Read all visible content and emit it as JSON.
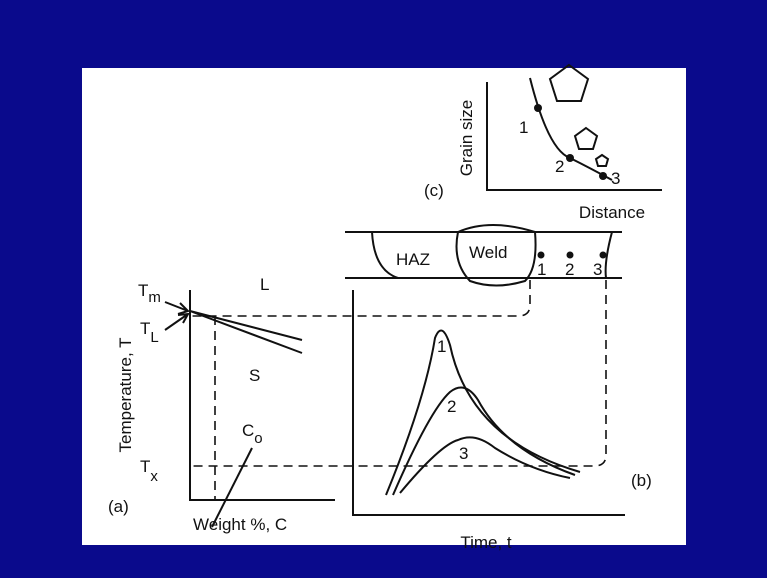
{
  "panel_c": {
    "label": "(c)",
    "y_axis": "Grain size",
    "x_axis": "Distance",
    "points": [
      "1",
      "2",
      "3"
    ]
  },
  "weld": {
    "haz": "HAZ",
    "weld": "Weld",
    "points": [
      "1",
      "2",
      "3"
    ]
  },
  "panel_a": {
    "label": "(a)",
    "y_axis": "Temperature, T",
    "x_axis": "Weight %, C",
    "tm": {
      "main": "T",
      "sub": "m"
    },
    "tl": {
      "main": "T",
      "sub": "L"
    },
    "tx": {
      "main": "T",
      "sub": "x"
    },
    "co": {
      "main": "C",
      "sub": "o"
    },
    "liquid": "L",
    "solid": "S"
  },
  "panel_b": {
    "label": "(b)",
    "x_axis": "Time, t",
    "curves": [
      "1",
      "2",
      "3"
    ]
  }
}
